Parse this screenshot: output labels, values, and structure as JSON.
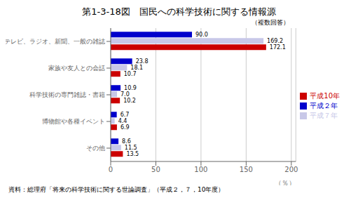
{
  "chart_data": {
    "type": "bar",
    "orientation": "horizontal",
    "title": "第1-3-18図　国民への科学技術に関する情報源",
    "subtitle": "（複数回答）",
    "annotations": [
      "資料：総理府「将来の科学技術に関する世論調査」（平成２，７，10年度）"
    ],
    "xlabel": "（％）",
    "categories": [
      "テレビ、ラジオ、新聞、一般の雑誌",
      "家族や友人との会話",
      "科学技術の専門雑誌・書籍",
      "博物館や各種イベント",
      "その他"
    ],
    "series": [
      {
        "name": "平成２年",
        "color": "#0000cc",
        "values": [
          90.0,
          23.8,
          10.9,
          6.7,
          8.6
        ],
        "value_labels": [
          "90.0",
          "23.8",
          "10.9",
          "6.7",
          "8.6"
        ]
      },
      {
        "name": "平成７年",
        "color": "#c8c8e8",
        "values": [
          169.2,
          18.1,
          7.0,
          4.4,
          11.5
        ],
        "value_labels": [
          "169.2",
          "18.1",
          "7.0",
          "4.4",
          "11.5"
        ]
      },
      {
        "name": "平成10年",
        "color": "#cc0000",
        "values": [
          172.1,
          10.7,
          10.2,
          6.9,
          13.5
        ],
        "value_labels": [
          "172.1",
          "10.7",
          "10.2",
          "6.9",
          "13.5"
        ]
      }
    ],
    "xlim": [
      0,
      205
    ],
    "xticks": [
      0,
      50,
      100,
      150,
      200
    ],
    "grid": true,
    "legend": "right",
    "data_labels": true
  }
}
